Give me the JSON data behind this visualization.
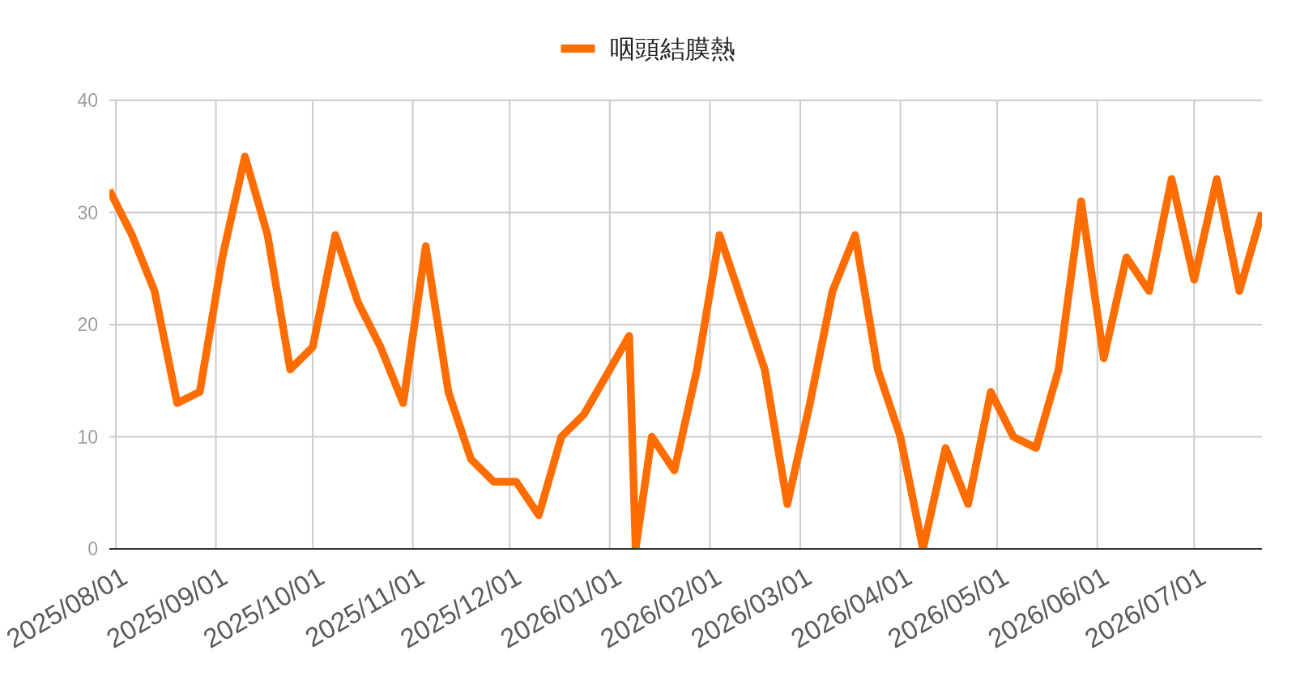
{
  "chart_data": {
    "type": "line",
    "x": [
      "2025-07-30",
      "2025-08-06",
      "2025-08-13",
      "2025-08-20",
      "2025-08-27",
      "2025-09-03",
      "2025-09-10",
      "2025-09-17",
      "2025-09-24",
      "2025-10-01",
      "2025-10-08",
      "2025-10-15",
      "2025-10-22",
      "2025-10-29",
      "2025-11-05",
      "2025-11-12",
      "2025-11-19",
      "2025-11-26",
      "2025-12-03",
      "2025-12-10",
      "2025-12-17",
      "2025-12-24",
      "2026-01-07",
      "2026-01-09",
      "2026-01-14",
      "2026-01-21",
      "2026-01-28",
      "2026-02-04",
      "2026-02-11",
      "2026-02-18",
      "2026-02-25",
      "2026-03-04",
      "2026-03-11",
      "2026-03-18",
      "2026-03-25",
      "2026-04-01",
      "2026-04-08",
      "2026-04-15",
      "2026-04-22",
      "2026-04-29",
      "2026-05-06",
      "2026-05-13",
      "2026-05-20",
      "2026-05-27",
      "2026-06-03",
      "2026-06-10",
      "2026-06-17",
      "2026-06-24",
      "2026-07-01",
      "2026-07-08",
      "2026-07-15",
      "2026-07-22"
    ],
    "series": [
      {
        "name": "咽頭結膜熱",
        "color": "#ff6d00",
        "values": [
          32,
          28,
          23,
          13,
          14,
          26,
          35,
          28,
          16,
          18,
          28,
          22,
          18,
          13,
          27,
          14,
          8,
          6,
          6,
          3,
          10,
          12,
          19,
          0,
          10,
          7,
          16,
          28,
          22,
          16,
          4,
          13,
          23,
          28,
          16,
          10,
          0,
          9,
          4,
          14,
          10,
          9,
          16,
          31,
          17,
          26,
          23,
          33,
          24,
          33,
          23,
          30
        ]
      }
    ],
    "xlim": [
      "2025-07-30",
      "2026-07-22"
    ],
    "xticks": [
      {
        "value": "2025-08-01",
        "label": "2025/08/01"
      },
      {
        "value": "2025-09-01",
        "label": "2025/09/01"
      },
      {
        "value": "2025-10-01",
        "label": "2025/10/01"
      },
      {
        "value": "2025-11-01",
        "label": "2025/11/01"
      },
      {
        "value": "2025-12-01",
        "label": "2025/12/01"
      },
      {
        "value": "2026-01-01",
        "label": "2026/01/01"
      },
      {
        "value": "2026-02-01",
        "label": "2026/02/01"
      },
      {
        "value": "2026-03-01",
        "label": "2026/03/01"
      },
      {
        "value": "2026-04-01",
        "label": "2026/04/01"
      },
      {
        "value": "2026-05-01",
        "label": "2026/05/01"
      },
      {
        "value": "2026-06-01",
        "label": "2026/06/01"
      },
      {
        "value": "2026-07-01",
        "label": "2026/07/01"
      }
    ],
    "ylim": [
      0,
      40
    ],
    "yticks": [
      0,
      10,
      20,
      30,
      40
    ],
    "grid": true,
    "legend": "top",
    "line_style": "solid"
  }
}
